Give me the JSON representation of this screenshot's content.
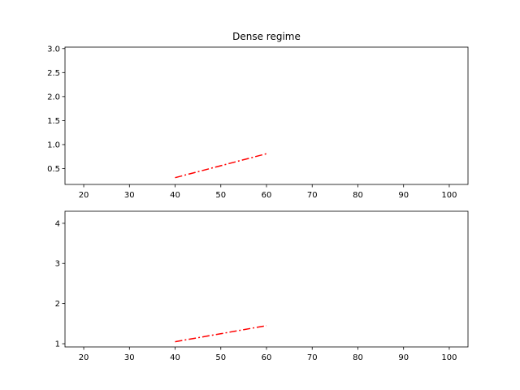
{
  "chart_data": [
    {
      "type": "line",
      "title": "Dense  regime",
      "xlabel": "",
      "ylabel": "",
      "xlim": [
        15.9,
        104.1
      ],
      "ylim": [
        0.17,
        3.03
      ],
      "xticks": [
        20,
        30,
        40,
        50,
        60,
        70,
        80,
        90,
        100
      ],
      "yticks": [
        0.5,
        1.0,
        1.5,
        2.0,
        2.5,
        3.0
      ],
      "ytick_format": 1,
      "grid": false,
      "series": [
        {
          "x": [
            40,
            60
          ],
          "y": [
            0.31,
            0.81
          ],
          "color": "#ff0000",
          "linestyle": "dashdot"
        }
      ]
    },
    {
      "type": "line",
      "title": "",
      "xlabel": "",
      "ylabel": "",
      "xlim": [
        15.9,
        104.1
      ],
      "ylim": [
        0.92,
        4.3
      ],
      "xticks": [
        20,
        30,
        40,
        50,
        60,
        70,
        80,
        90,
        100
      ],
      "yticks": [
        1,
        2,
        3,
        4
      ],
      "ytick_format": 0,
      "grid": false,
      "series": [
        {
          "x": [
            40,
            60
          ],
          "y": [
            1.05,
            1.45
          ],
          "color": "#ff0000",
          "linestyle": "dashdot"
        }
      ]
    }
  ]
}
